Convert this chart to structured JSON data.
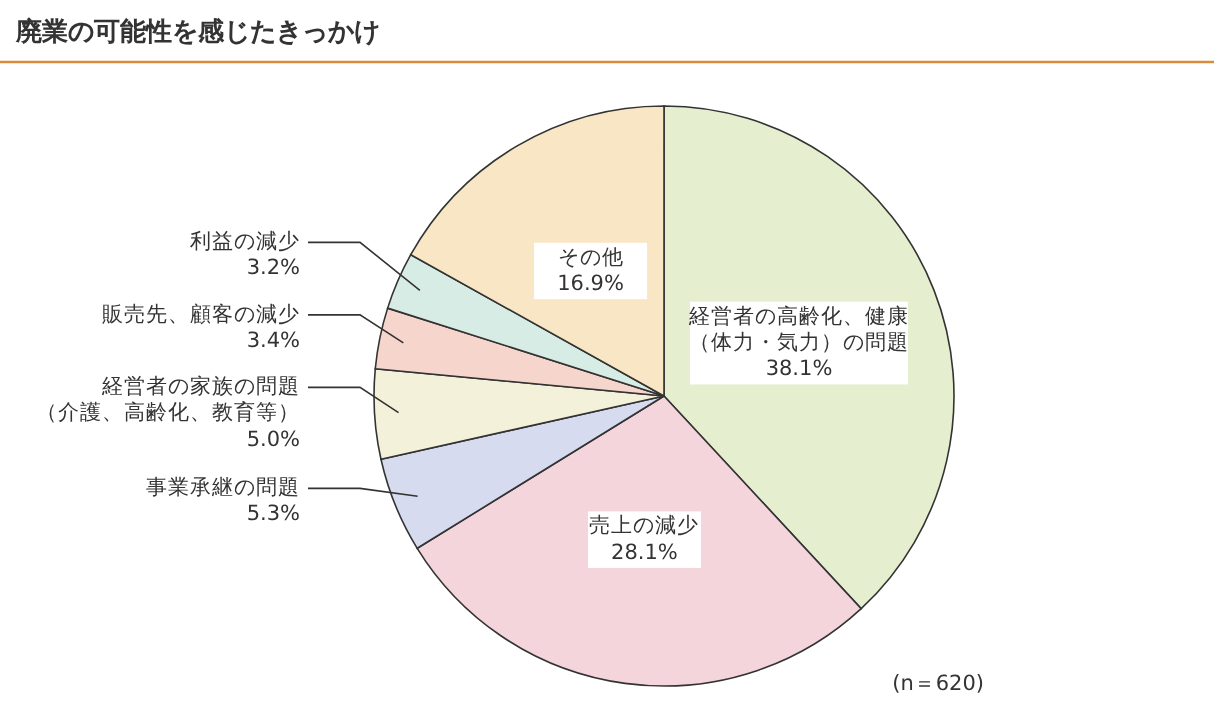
{
  "chart_data": {
    "type": "pie",
    "title": "廃業の可能性を感じたきっかけ",
    "categories": [
      "経営者の高齢化、健康（体力・気力）の問題",
      "売上の減少",
      "事業承継の問題",
      "経営者の家族の問題（介護、高齢化、教育等）",
      "販売先、顧客の減少",
      "利益の減少",
      "その他"
    ],
    "values": [
      38.1,
      28.1,
      5.3,
      5.0,
      3.4,
      3.2,
      16.9
    ],
    "value_labels": [
      "38.1%",
      "28.1%",
      "5.3%",
      "5.0%",
      "3.4%",
      "3.2%",
      "16.9%"
    ],
    "colors": [
      "#e5efcf",
      "#f5d5dc",
      "#d7dbef",
      "#f3f1da",
      "#f6d5cc",
      "#d8ece6",
      "#f9e6c4"
    ],
    "annotations": [
      "(n＝620)"
    ]
  }
}
